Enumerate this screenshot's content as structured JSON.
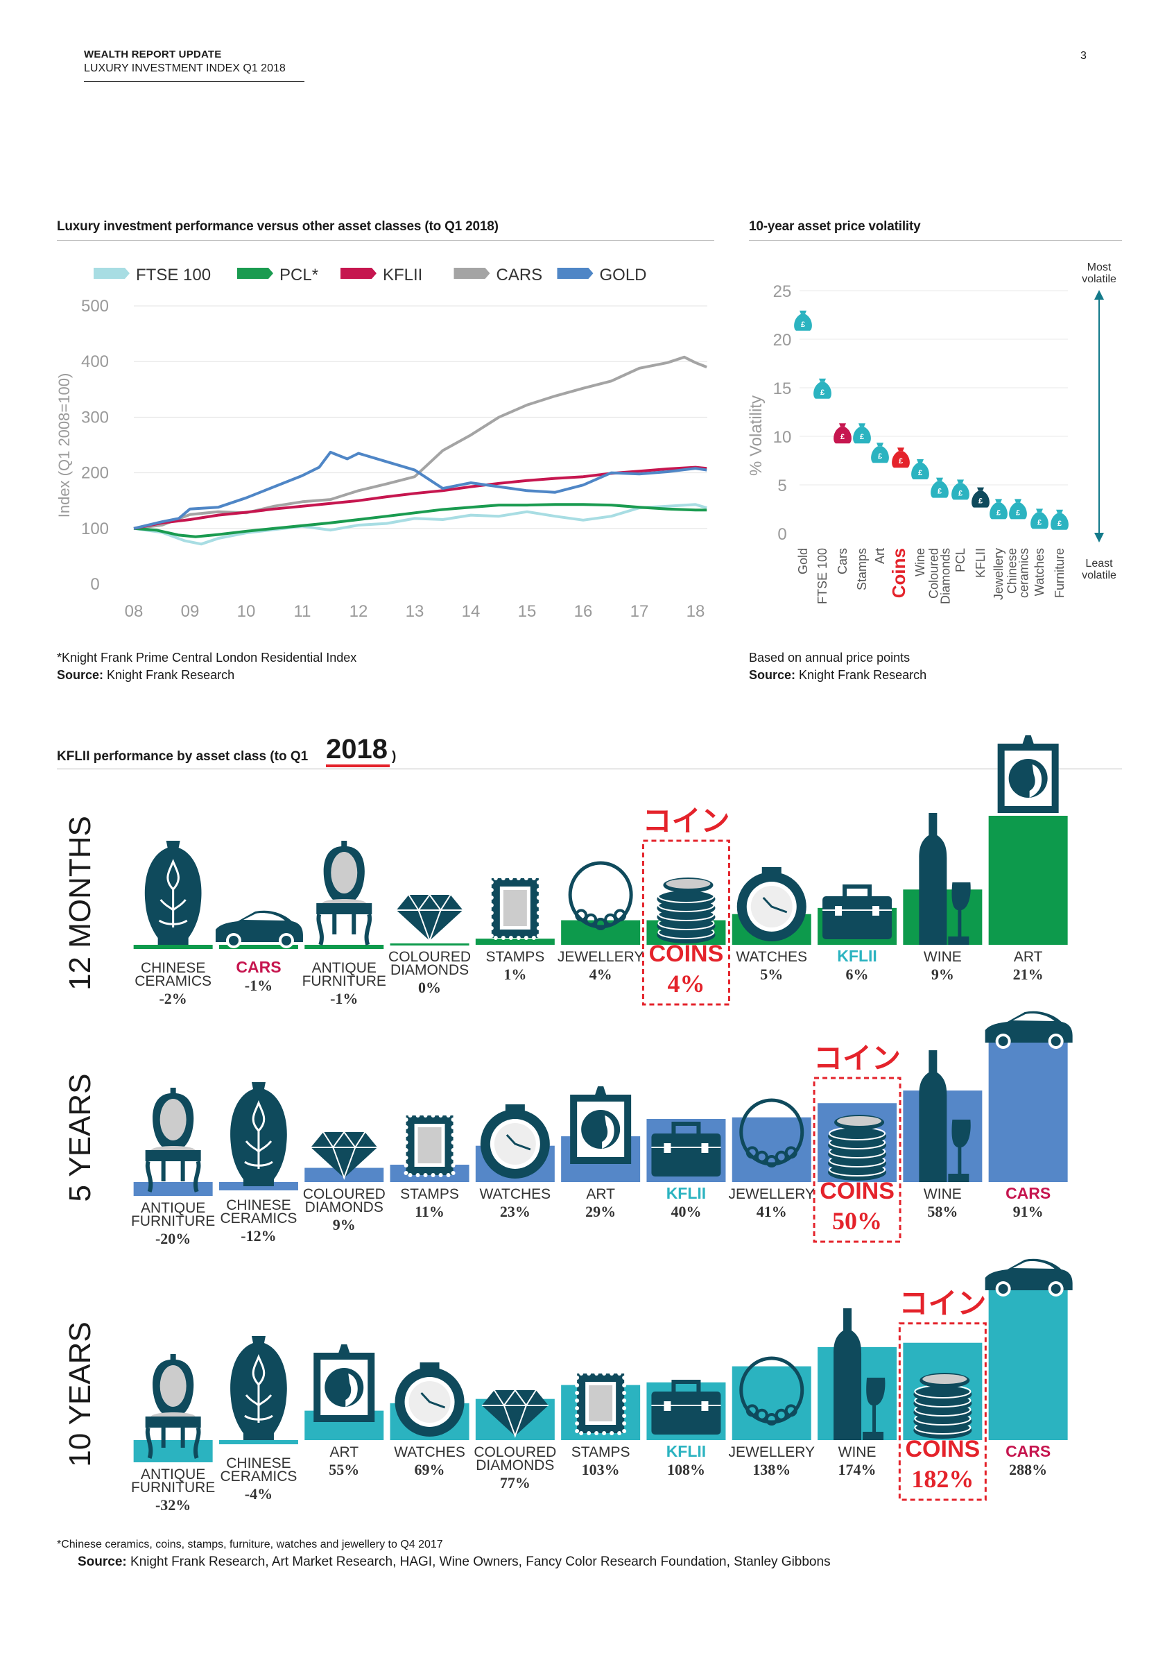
{
  "header": {
    "title": "WEALTH REPORT UPDATE",
    "subtitle": "LUXURY INVESTMENT INDEX Q1 2018",
    "page_number": "3"
  },
  "line_chart": {
    "section_title": "Luxury investment performance versus other asset classes (to Q1 2018)",
    "footnote": "*Knight Frank Prime Central London Residential Index",
    "source_label": "Source:",
    "source_text": " Knight Frank Research"
  },
  "volatility": {
    "section_title": "10-year asset price volatility",
    "note": "Based on annual price points",
    "source_label": "Source:",
    "source_text": " Knight Frank Research",
    "most_label_1": "Most",
    "most_label_2": "volatile",
    "least_label_1": "Least",
    "least_label_2": "volatile"
  },
  "kflii": {
    "section_title": "KFLII performance by asset class (to Q1 ",
    "year": "2018",
    "year_close": ")",
    "coin_annotation": "コイン",
    "footnote": "*Chinese ceramics, coins, stamps, furniture, watches and jewellery to Q4 2017",
    "source_label": "Source:",
    "source_text": " Knight Frank Research, Art Market Research, HAGI, Wine Owners, Fancy Color Research Foundation, Stanley Gibbons"
  },
  "colors": {
    "ftse": "#a8dde3",
    "pcl": "#1a9b50",
    "kflii": "#c6164f",
    "cars": "#a4a4a4",
    "gold": "#4f86c6",
    "navy": "#0f4a5c",
    "teal": "#2bb3c0",
    "green": "#0d9a4c",
    "blue": "#5587c8",
    "red": "#e4232b",
    "gray": "#8a8a8a"
  },
  "chart_data": [
    {
      "type": "line",
      "title": "Luxury investment performance versus other asset classes (to Q1 2018)",
      "xlabel": "",
      "ylabel": "Index (Q1 2008=100)",
      "xlim": [
        2008,
        2018.3
      ],
      "ylim": [
        0,
        500
      ],
      "x_tick_labels": [
        "08",
        "09",
        "10",
        "11",
        "12",
        "13",
        "14",
        "15",
        "16",
        "17",
        "18"
      ],
      "y_tick_labels": [
        "0",
        "100",
        "200",
        "300",
        "400",
        "500"
      ],
      "y_ticks": [
        0,
        100,
        200,
        300,
        400,
        500
      ],
      "legend_position": "top",
      "series": [
        {
          "name": "FTSE 100",
          "color": "#a8dde3",
          "points": [
            [
              2008,
              100
            ],
            [
              2008.5,
              93
            ],
            [
              2008.9,
              78
            ],
            [
              2009.2,
              72
            ],
            [
              2009.5,
              82
            ],
            [
              2010,
              92
            ],
            [
              2010.5,
              98
            ],
            [
              2011,
              104
            ],
            [
              2011.5,
              97
            ],
            [
              2012,
              106
            ],
            [
              2012.5,
              109
            ],
            [
              2013,
              118
            ],
            [
              2013.5,
              116
            ],
            [
              2014,
              124
            ],
            [
              2014.5,
              122
            ],
            [
              2015,
              130
            ],
            [
              2015.5,
              122
            ],
            [
              2016,
              115
            ],
            [
              2016.5,
              122
            ],
            [
              2017,
              137
            ],
            [
              2017.5,
              140
            ],
            [
              2018,
              143
            ],
            [
              2018.2,
              137
            ]
          ]
        },
        {
          "name": "PCL*",
          "color": "#1a9b50",
          "points": [
            [
              2008,
              100
            ],
            [
              2008.4,
              97
            ],
            [
              2008.8,
              88
            ],
            [
              2009.1,
              85
            ],
            [
              2009.5,
              89
            ],
            [
              2010,
              95
            ],
            [
              2010.5,
              100
            ],
            [
              2011,
              105
            ],
            [
              2011.5,
              110
            ],
            [
              2012,
              116
            ],
            [
              2012.5,
              122
            ],
            [
              2013,
              128
            ],
            [
              2013.5,
              134
            ],
            [
              2014,
              138
            ],
            [
              2014.5,
              142
            ],
            [
              2015,
              142
            ],
            [
              2015.5,
              143
            ],
            [
              2016,
              143
            ],
            [
              2016.5,
              142
            ],
            [
              2017,
              138
            ],
            [
              2017.5,
              135
            ],
            [
              2018,
              133
            ],
            [
              2018.2,
              133
            ]
          ]
        },
        {
          "name": "KFLII",
          "color": "#c6164f",
          "points": [
            [
              2008,
              100
            ],
            [
              2008.5,
              110
            ],
            [
              2009,
              116
            ],
            [
              2009.5,
              124
            ],
            [
              2010,
              129
            ],
            [
              2010.5,
              135
            ],
            [
              2011,
              140
            ],
            [
              2011.5,
              145
            ],
            [
              2012,
              150
            ],
            [
              2012.5,
              157
            ],
            [
              2013,
              163
            ],
            [
              2013.5,
              168
            ],
            [
              2014,
              175
            ],
            [
              2014.5,
              181
            ],
            [
              2015,
              186
            ],
            [
              2015.5,
              190
            ],
            [
              2016,
              193
            ],
            [
              2016.5,
              199
            ],
            [
              2017,
              203
            ],
            [
              2017.5,
              207
            ],
            [
              2018,
              210
            ],
            [
              2018.2,
              208
            ]
          ]
        },
        {
          "name": "CARS",
          "color": "#a4a4a4",
          "points": [
            [
              2008,
              100
            ],
            [
              2008.5,
              106
            ],
            [
              2009,
              125
            ],
            [
              2009.5,
              130
            ],
            [
              2010,
              128
            ],
            [
              2010.5,
              140
            ],
            [
              2011,
              148
            ],
            [
              2011.5,
              152
            ],
            [
              2012,
              168
            ],
            [
              2012.5,
              180
            ],
            [
              2013,
              193
            ],
            [
              2013.5,
              240
            ],
            [
              2014,
              268
            ],
            [
              2014.5,
              300
            ],
            [
              2015,
              322
            ],
            [
              2015.5,
              338
            ],
            [
              2016,
              352
            ],
            [
              2016.5,
              365
            ],
            [
              2017,
              388
            ],
            [
              2017.5,
              398
            ],
            [
              2017.8,
              408
            ],
            [
              2018,
              398
            ],
            [
              2018.2,
              390
            ]
          ]
        },
        {
          "name": "GOLD",
          "color": "#4f86c6",
          "points": [
            [
              2008,
              100
            ],
            [
              2008.5,
              112
            ],
            [
              2008.8,
              118
            ],
            [
              2009,
              135
            ],
            [
              2009.5,
              138
            ],
            [
              2010,
              155
            ],
            [
              2010.5,
              175
            ],
            [
              2011,
              195
            ],
            [
              2011.3,
              210
            ],
            [
              2011.5,
              237
            ],
            [
              2011.8,
              225
            ],
            [
              2012,
              235
            ],
            [
              2012.5,
              220
            ],
            [
              2013,
              205
            ],
            [
              2013.5,
              172
            ],
            [
              2014,
              182
            ],
            [
              2014.5,
              175
            ],
            [
              2015,
              168
            ],
            [
              2015.5,
              165
            ],
            [
              2016,
              178
            ],
            [
              2016.5,
              200
            ],
            [
              2017,
              198
            ],
            [
              2017.5,
              202
            ],
            [
              2018,
              208
            ],
            [
              2018.2,
              205
            ]
          ]
        }
      ]
    },
    {
      "type": "scatter",
      "title": "10-year asset price volatility",
      "ylabel": "% Volatility",
      "ylim": [
        0,
        25
      ],
      "y_tick_labels": [
        "0",
        "5",
        "10",
        "15",
        "20",
        "25"
      ],
      "y_ticks": [
        0,
        5,
        10,
        15,
        20,
        25
      ],
      "categories": [
        "Gold",
        "FTSE 100",
        "Cars",
        "Stamps",
        "Art",
        "Coins",
        "Wine",
        "Coloured Diamonds",
        "PCL",
        "KFLII",
        "Jewellery",
        "Chinese ceramics",
        "Watches",
        "Furniture"
      ],
      "values": [
        21.8,
        14.8,
        10.2,
        10.2,
        8.2,
        7.7,
        6.5,
        4.6,
        4.4,
        3.6,
        2.4,
        2.4,
        1.4,
        1.3
      ],
      "point_colors": [
        "#2bb3c0",
        "#2bb3c0",
        "#c6164f",
        "#2bb3c0",
        "#2bb3c0",
        "#e4232b",
        "#2bb3c0",
        "#2bb3c0",
        "#2bb3c0",
        "#0f4a5c",
        "#2bb3c0",
        "#2bb3c0",
        "#2bb3c0",
        "#2bb3c0"
      ]
    },
    {
      "type": "bar",
      "title": "12 MONTHS",
      "categories": [
        "CHINESE CERAMICS",
        "CARS",
        "ANTIQUE FURNITURE",
        "COLOURED DIAMONDS",
        "STAMPS",
        "JEWELLERY",
        "COINS",
        "WATCHES",
        "KFLII",
        "WINE",
        "ART"
      ],
      "values": [
        -2,
        -1,
        -1,
        0,
        1,
        4,
        4,
        5,
        6,
        9,
        21
      ],
      "value_labels": [
        "-2%",
        "-1%",
        "-1%",
        "0%",
        "1%",
        "4%",
        "4%",
        "5%",
        "6%",
        "9%",
        "21%"
      ]
    },
    {
      "type": "bar",
      "title": "5 YEARS",
      "categories": [
        "ANTIQUE FURNITURE",
        "CHINESE CERAMICS",
        "COLOURED DIAMONDS",
        "STAMPS",
        "WATCHES",
        "ART",
        "KFLII",
        "JEWELLERY",
        "COINS",
        "WINE",
        "CARS"
      ],
      "values": [
        -20,
        -12,
        9,
        11,
        23,
        29,
        40,
        41,
        50,
        58,
        91
      ],
      "value_labels": [
        "-20%",
        "-12%",
        "9%",
        "11%",
        "23%",
        "29%",
        "40%",
        "41%",
        "50%",
        "58%",
        "91%"
      ]
    },
    {
      "type": "bar",
      "title": "10 YEARS",
      "categories": [
        "ANTIQUE FURNITURE",
        "CHINESE CERAMICS",
        "ART",
        "WATCHES",
        "COLOURED DIAMONDS",
        "STAMPS",
        "KFLII",
        "JEWELLERY",
        "WINE",
        "COINS",
        "CARS"
      ],
      "values": [
        -32,
        -4,
        55,
        69,
        77,
        103,
        108,
        138,
        174,
        182,
        288
      ],
      "value_labels": [
        "-32%",
        "-4%",
        "55%",
        "69%",
        "77%",
        "103%",
        "108%",
        "138%",
        "174%",
        "182%",
        "288%"
      ]
    }
  ]
}
